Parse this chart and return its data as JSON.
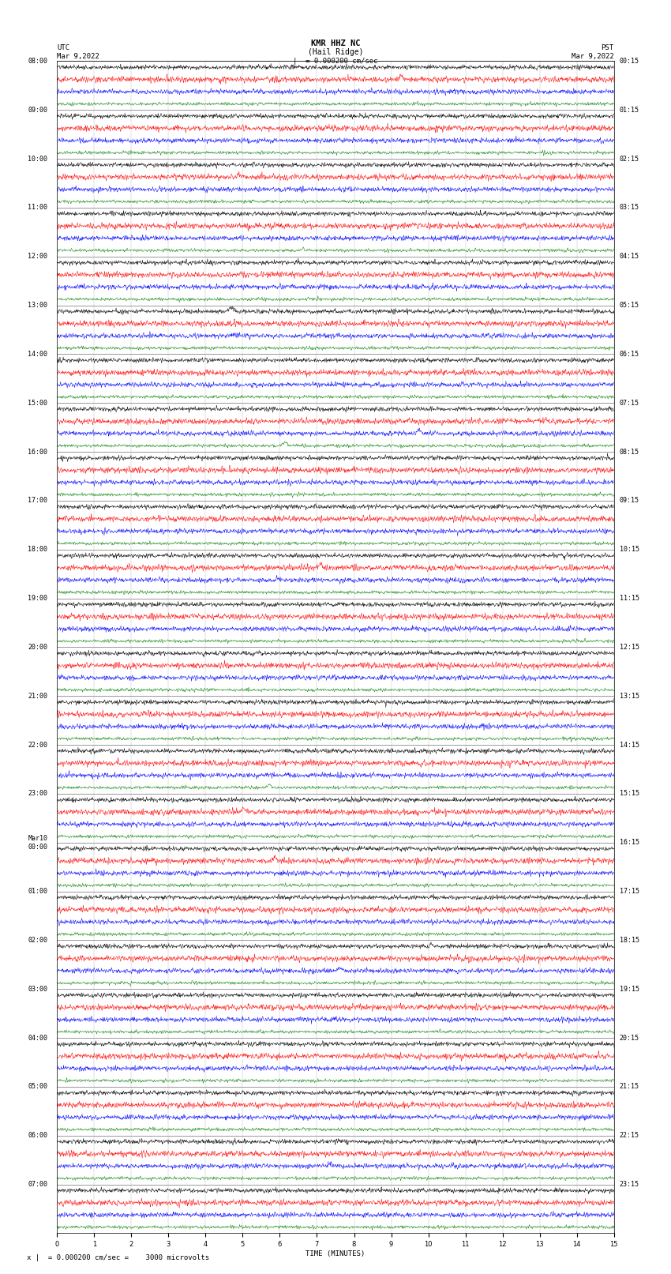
{
  "title_line1": "KMR HHZ NC",
  "title_line2": "(Hail Ridge)",
  "scale_text": "|  = 0.000200 cm/sec",
  "utc_label": "UTC",
  "pst_label": "PST",
  "date_left": "Mar 9,2022",
  "date_right": "Mar 9,2022",
  "xlabel": "TIME (MINUTES)",
  "footer": "x |  = 0.000200 cm/sec =    3000 microvolts",
  "trace_colors": [
    "black",
    "red",
    "blue",
    "green"
  ],
  "bg_color": "white",
  "n_minutes": 15,
  "n_hours": 24,
  "amplitude_scale": 0.35,
  "grid_color": "#999999",
  "text_color": "black",
  "font_size_title": 7.5,
  "font_size_label": 6.5,
  "font_size_tick": 6.0,
  "left_label_hours_utc": [
    "08:00",
    "09:00",
    "10:00",
    "11:00",
    "12:00",
    "13:00",
    "14:00",
    "15:00",
    "16:00",
    "17:00",
    "18:00",
    "19:00",
    "20:00",
    "21:00",
    "22:00",
    "23:00",
    "Mar10\n00:00",
    "01:00",
    "02:00",
    "03:00",
    "04:00",
    "05:00",
    "06:00",
    "07:00"
  ],
  "right_label_hours_pst": [
    "00:15",
    "01:15",
    "02:15",
    "03:15",
    "04:15",
    "05:15",
    "06:15",
    "07:15",
    "08:15",
    "09:15",
    "10:15",
    "11:15",
    "12:15",
    "13:15",
    "14:15",
    "15:15",
    "16:15",
    "17:15",
    "18:15",
    "19:15",
    "20:15",
    "21:15",
    "22:15",
    "23:15"
  ]
}
